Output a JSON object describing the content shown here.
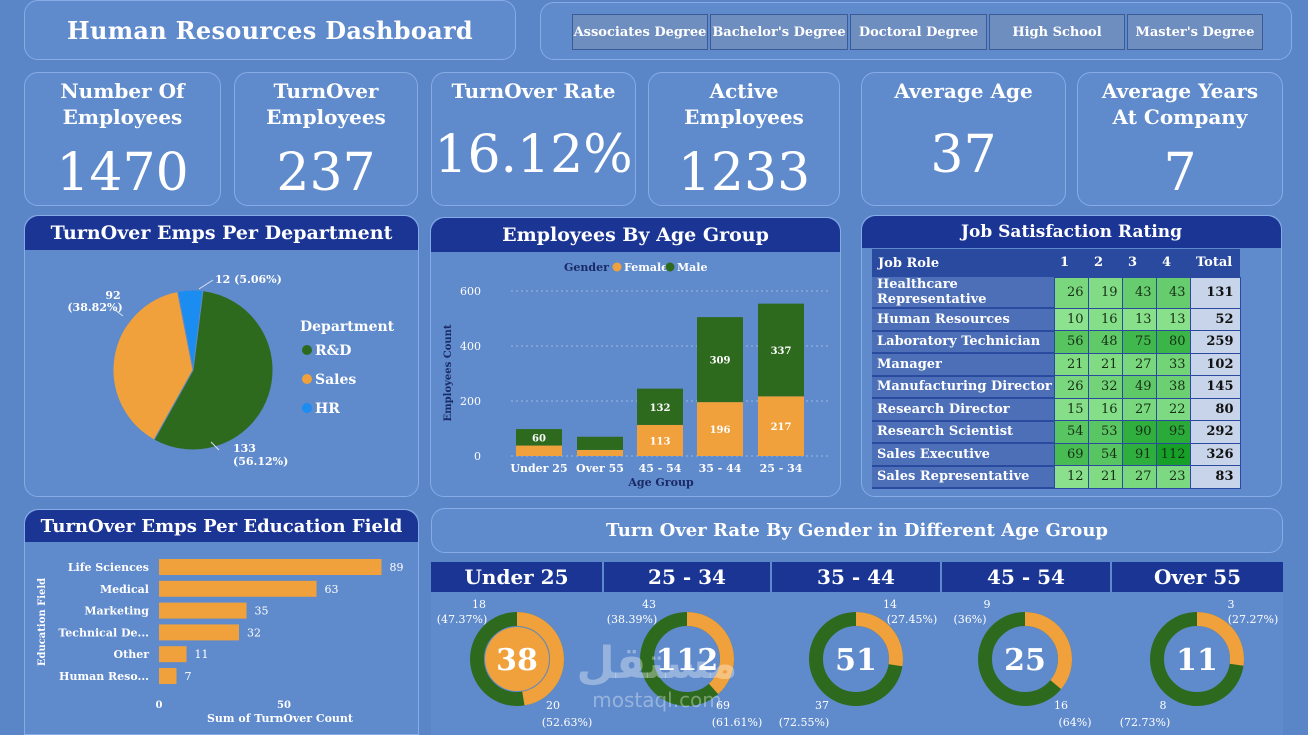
{
  "header": {
    "title": "Human Resources Dashboard"
  },
  "slicers": [
    "Associates Degree",
    "Bachelor's Degree",
    "Doctoral Degree",
    "High School",
    "Master's Degree"
  ],
  "kpis": {
    "employees": {
      "label": "Number Of Employees",
      "value": "1470"
    },
    "turnover": {
      "label": "TurnOver Employees",
      "value": "237"
    },
    "rate": {
      "label": "TurnOver Rate",
      "value": "16.12%"
    },
    "active": {
      "label": "Active Employees",
      "value": "1233"
    },
    "age": {
      "label": "Average Age",
      "value": "37"
    },
    "years": {
      "label": "Average Years At Company",
      "value": "7"
    }
  },
  "department_chart": {
    "title": "TurnOver Emps Per Department",
    "legend_title": "Department",
    "slices": [
      {
        "name": "R&D",
        "value": 133,
        "pct": "56.12%",
        "color": "#2d6a1e"
      },
      {
        "name": "Sales",
        "value": 92,
        "pct": "38.82%",
        "color": "#f0a13c"
      },
      {
        "name": "HR",
        "value": 12,
        "pct": "5.06%",
        "color": "#1b8cf0"
      }
    ]
  },
  "age_chart": {
    "title": "Employees By Age Group",
    "legend_title": "Gender",
    "female_label": "Female",
    "male_label": "Male",
    "xlabel": "Age Group",
    "ylabel": "Employees Count"
  },
  "education_chart": {
    "title": "TurnOver Emps Per Education Field",
    "ylabel": "Education Field",
    "xlabel": "Sum of TurnOver Count"
  },
  "satisfaction": {
    "title": "Job Satisfaction Rating",
    "headers": [
      "Job Role",
      "1",
      "2",
      "3",
      "4",
      "Total"
    ],
    "rows": [
      {
        "role": "Healthcare Representative",
        "vals": [
          26,
          19,
          43,
          43
        ],
        "total": 131
      },
      {
        "role": "Human Resources",
        "vals": [
          10,
          16,
          13,
          13
        ],
        "total": 52
      },
      {
        "role": "Laboratory Technician",
        "vals": [
          56,
          48,
          75,
          80
        ],
        "total": 259
      },
      {
        "role": "Manager",
        "vals": [
          21,
          21,
          27,
          33
        ],
        "total": 102
      },
      {
        "role": "Manufacturing Director",
        "vals": [
          26,
          32,
          49,
          38
        ],
        "total": 145
      },
      {
        "role": "Research Director",
        "vals": [
          15,
          16,
          27,
          22
        ],
        "total": 80
      },
      {
        "role": "Research Scientist",
        "vals": [
          54,
          53,
          90,
          95
        ],
        "total": 292
      },
      {
        "role": "Sales Executive",
        "vals": [
          69,
          54,
          91,
          112
        ],
        "total": 326
      },
      {
        "role": "Sales Representative",
        "vals": [
          12,
          21,
          27,
          23
        ],
        "total": 83
      }
    ]
  },
  "gender_rate": {
    "title": "Turn Over Rate By Gender in Different Age Group",
    "groups": [
      {
        "label": "Under 25",
        "total": "38",
        "female": "18",
        "female_pct": "(47.37%)",
        "male": "20",
        "male_pct": "(52.63%)",
        "female_share": 0.4737
      },
      {
        "label": "25 - 34",
        "total": "112",
        "female": "43",
        "female_pct": "(38.39%)",
        "male": "69",
        "male_pct": "(61.61%)",
        "female_share": 0.3839
      },
      {
        "label": "35 - 44",
        "total": "51",
        "female": "14",
        "female_pct": "(27.45%)",
        "male": "37",
        "male_pct": "(72.55%)",
        "female_share": 0.2745
      },
      {
        "label": "45 - 54",
        "total": "25",
        "female": "9",
        "female_pct": "(36%)",
        "male": "16",
        "male_pct": "(64%)",
        "female_share": 0.36
      },
      {
        "label": "Over 55",
        "total": "11",
        "female": "3",
        "female_pct": "(27.27%)",
        "male": "8",
        "male_pct": "(72.73%)",
        "female_share": 0.2727
      }
    ]
  },
  "watermark": {
    "top": "مستقل",
    "bottom": "mostaql.com"
  },
  "colors": {
    "female": "#f0a13c",
    "male": "#2d6a1e",
    "hr": "#1b8cf0",
    "header": "#1a3594"
  },
  "chart_data": [
    {
      "type": "pie",
      "title": "TurnOver Emps Per Department",
      "categories": [
        "R&D",
        "Sales",
        "HR"
      ],
      "values": [
        133,
        92,
        12
      ]
    },
    {
      "type": "bar",
      "title": "Employees By Age Group",
      "categories": [
        "Under 25",
        "Over 55",
        "45 - 54",
        "35 - 44",
        "25 - 34"
      ],
      "series": [
        {
          "name": "Female",
          "values": [
            38,
            22,
            113,
            196,
            217
          ]
        },
        {
          "name": "Male",
          "values": [
            60,
            48,
            132,
            309,
            337
          ]
        }
      ],
      "xlabel": "Age Group",
      "ylabel": "Employees Count",
      "yticks": [
        0,
        200,
        400,
        600
      ],
      "ylim": [
        0,
        620
      ]
    },
    {
      "type": "bar",
      "title": "TurnOver Emps Per Education Field",
      "categories": [
        "Life Sciences",
        "Medical",
        "Marketing",
        "Technical De...",
        "Other",
        "Human Reso..."
      ],
      "values": [
        89,
        63,
        35,
        32,
        11,
        7
      ],
      "xticks": [
        0,
        50
      ],
      "xlim": [
        0,
        100
      ],
      "xlabel": "Sum of TurnOver Count",
      "ylabel": "Education Field"
    }
  ]
}
